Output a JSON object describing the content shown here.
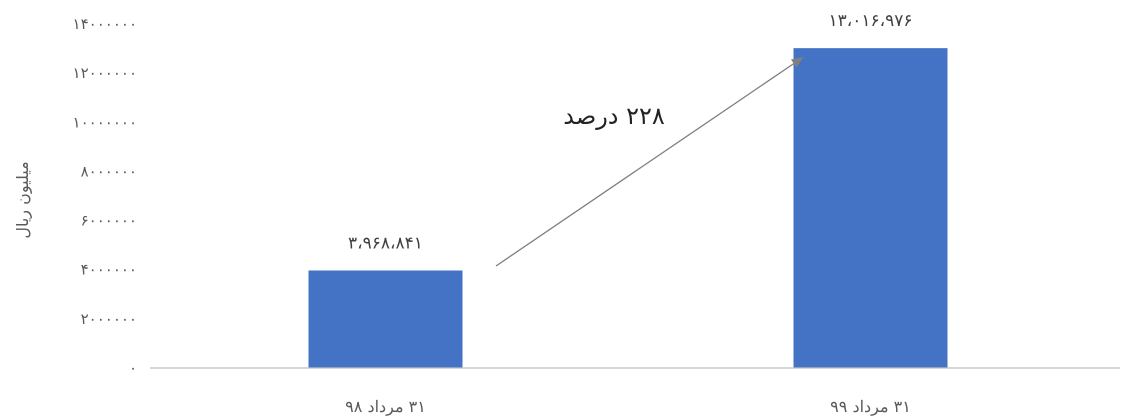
{
  "chart_data": {
    "type": "bar",
    "categories": [
      "۳۱ مرداد ۹۸",
      "۳۱ مرداد ۹۹"
    ],
    "values": [
      3968841,
      13016976
    ],
    "data_labels": [
      "۳،۹۶۸،۸۴۱",
      "۱۳،۰۱۶،۹۷۶"
    ],
    "ylabel": "میلیون ریال",
    "ylim": [
      0,
      14000000
    ],
    "yticks": [
      0,
      2000000,
      4000000,
      6000000,
      8000000,
      10000000,
      12000000,
      14000000
    ],
    "ytick_labels": [
      "۰",
      "۲۰۰۰۰۰۰",
      "۴۰۰۰۰۰۰",
      "۶۰۰۰۰۰۰",
      "۸۰۰۰۰۰۰",
      "۱۰۰۰۰۰۰۰",
      "۱۲۰۰۰۰۰۰",
      "۱۴۰۰۰۰۰۰"
    ],
    "annotation": "۲۲۸ درصد",
    "bar_color": "#4472C4",
    "grid": false
  }
}
